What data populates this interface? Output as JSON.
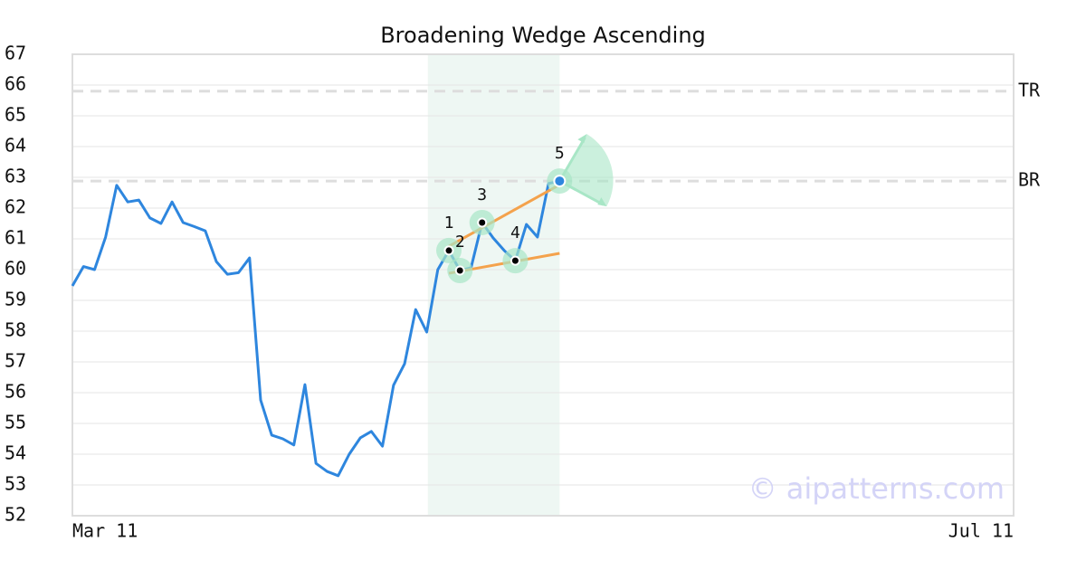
{
  "chart_data": {
    "type": "line",
    "title": "Broadening Wedge Ascending",
    "x": [
      0,
      1,
      2,
      3,
      4,
      5,
      6,
      7,
      8,
      9,
      10,
      11,
      12,
      13,
      14,
      15,
      16,
      17,
      18,
      19,
      20,
      21,
      22,
      23,
      24,
      25,
      26,
      27,
      28,
      29,
      30,
      31,
      32,
      33,
      34,
      35,
      36,
      37,
      38,
      39,
      40,
      41,
      42,
      43,
      44
    ],
    "series": [
      {
        "color": "#2e86de",
        "values": [
          59.47,
          60.1,
          60.0,
          61.06,
          62.74,
          62.2,
          62.26,
          61.68,
          61.5,
          62.2,
          61.53,
          61.4,
          61.26,
          60.26,
          59.85,
          59.9,
          60.38,
          55.76,
          54.62,
          54.5,
          54.3,
          56.26,
          53.7,
          53.44,
          53.3,
          54.0,
          54.53,
          54.74,
          54.26,
          56.24,
          56.94,
          58.7,
          57.97,
          60.0,
          60.62,
          59.97,
          60.06,
          61.53,
          61.03,
          60.62,
          60.29,
          61.47,
          61.06,
          62.8,
          62.88
        ]
      }
    ],
    "xlim": [
      0,
      85
    ],
    "xticks": [
      {
        "value": 0,
        "label": "Mar 11"
      },
      {
        "value": 85,
        "label": "Jul 11"
      }
    ],
    "ylim": [
      52,
      67
    ],
    "yticks": [
      52,
      53,
      54,
      55,
      56,
      57,
      58,
      59,
      60,
      61,
      62,
      63,
      64,
      65,
      66,
      67
    ],
    "grid": true,
    "hlines": [
      {
        "label": "TR",
        "value": 65.8
      },
      {
        "label": "BR",
        "value": 62.88
      }
    ],
    "highlight_range": [
      32.1,
      44
    ],
    "trendline_color": "#f4a24c",
    "trendlines": [
      {
        "x": [
          34,
          44
        ],
        "y": [
          60.76,
          62.76
        ]
      },
      {
        "x": [
          34,
          44
        ],
        "y": [
          59.88,
          60.53
        ]
      }
    ],
    "pattern_points": [
      {
        "label": "1",
        "x": 34
      },
      {
        "label": "2",
        "x": 35
      },
      {
        "label": "3",
        "x": 37
      },
      {
        "label": "4",
        "x": 40
      },
      {
        "label": "5",
        "x": 44
      }
    ],
    "watermark": "© aipatterns.com"
  }
}
